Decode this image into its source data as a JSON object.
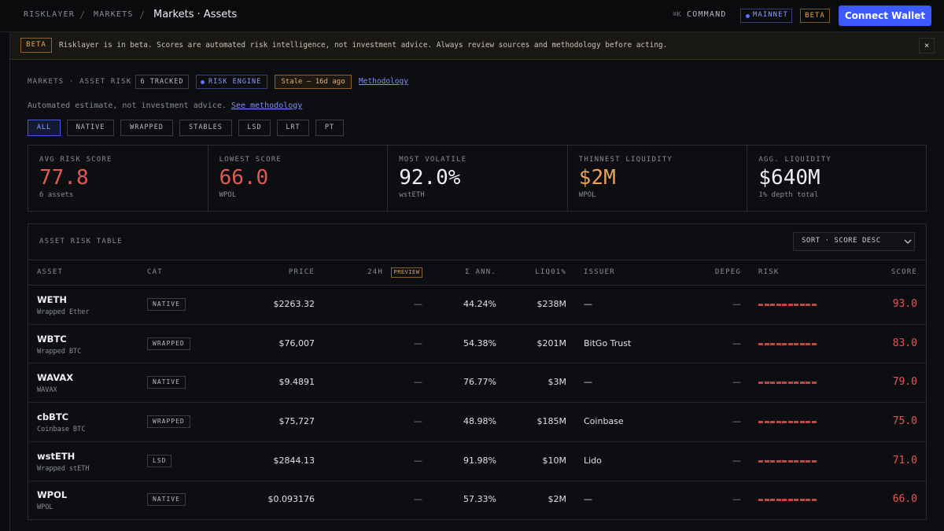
{
  "nav": {
    "brand": "RISKLAYER",
    "sep1": "/",
    "section": "MARKETS",
    "sep2": "/",
    "page": "Markets · Assets",
    "shortcut": "⌘K",
    "command": "COMMAND",
    "network": "MAINNET",
    "beta": "BETA",
    "connect": "Connect Wallet"
  },
  "banner": {
    "badge": "BETA",
    "text": "Risklayer is in beta. Scores are automated risk intelligence, not investment advice. Always review sources and methodology before acting.",
    "close": "×"
  },
  "header": {
    "crumb": "MARKETS · ASSET RISK",
    "tracked": "6 TRACKED",
    "engine": "RISK ENGINE",
    "stale": "Stale — 16d ago",
    "methodology": "Methodology"
  },
  "disclaimer": {
    "text": "Automated estimate, not investment advice.",
    "link": "See methodology"
  },
  "filters": [
    "ALL",
    "NATIVE",
    "WRAPPED",
    "STABLES",
    "LSD",
    "LRT",
    "PT"
  ],
  "stats": [
    {
      "label": "AVG RISK SCORE",
      "value": "77.8",
      "sub": "6 assets"
    },
    {
      "label": "LOWEST SCORE",
      "value": "66.0",
      "sub": "WPOL"
    },
    {
      "label": "MOST VOLATILE",
      "value": "92.0%",
      "sub": "wstETH"
    },
    {
      "label": "THINNEST LIQUIDITY",
      "value": "$2M",
      "sub": "WPOL"
    },
    {
      "label": "AGG. LIQUIDITY",
      "value": "$640M",
      "sub": "1% depth total"
    }
  ],
  "table": {
    "title": "ASSET RISK TABLE",
    "sort": "SORT · SCORE DESC",
    "columns": [
      "ASSET",
      "CAT",
      "PRICE",
      "24H",
      "Σ ANN.",
      "LIQ01%",
      "ISSUER",
      "DEPEG",
      "RISK",
      "SCORE"
    ],
    "preview": "PREVIEW",
    "rows": [
      {
        "asset": "WETH",
        "name": "Wrapped Ether",
        "cat": "NATIVE",
        "price": "$2263.32",
        "change": "—",
        "ann": "44.24%",
        "liq": "$238M",
        "issuer": "—",
        "depeg": "—",
        "score": "93.0"
      },
      {
        "asset": "WBTC",
        "name": "Wrapped BTC",
        "cat": "WRAPPED",
        "price": "$76,007",
        "change": "—",
        "ann": "54.38%",
        "liq": "$201M",
        "issuer": "BitGo Trust",
        "depeg": "—",
        "score": "83.0"
      },
      {
        "asset": "WAVAX",
        "name": "WAVAX",
        "cat": "NATIVE",
        "price": "$9.4891",
        "change": "—",
        "ann": "76.77%",
        "liq": "$3M",
        "issuer": "—",
        "depeg": "—",
        "score": "79.0"
      },
      {
        "asset": "cbBTC",
        "name": "Coinbase BTC",
        "cat": "WRAPPED",
        "price": "$75,727",
        "change": "—",
        "ann": "48.98%",
        "liq": "$185M",
        "issuer": "Coinbase",
        "depeg": "—",
        "score": "75.0"
      },
      {
        "asset": "wstETH",
        "name": "Wrapped stETH",
        "cat": "LSD",
        "price": "$2844.13",
        "change": "—",
        "ann": "91.98%",
        "liq": "$10M",
        "issuer": "Lido",
        "depeg": "—",
        "score": "71.0"
      },
      {
        "asset": "WPOL",
        "name": "WPOL",
        "cat": "NATIVE",
        "price": "$0.093176",
        "change": "—",
        "ann": "57.33%",
        "liq": "$2M",
        "issuer": "—",
        "depeg": "—",
        "score": "66.0"
      }
    ]
  }
}
